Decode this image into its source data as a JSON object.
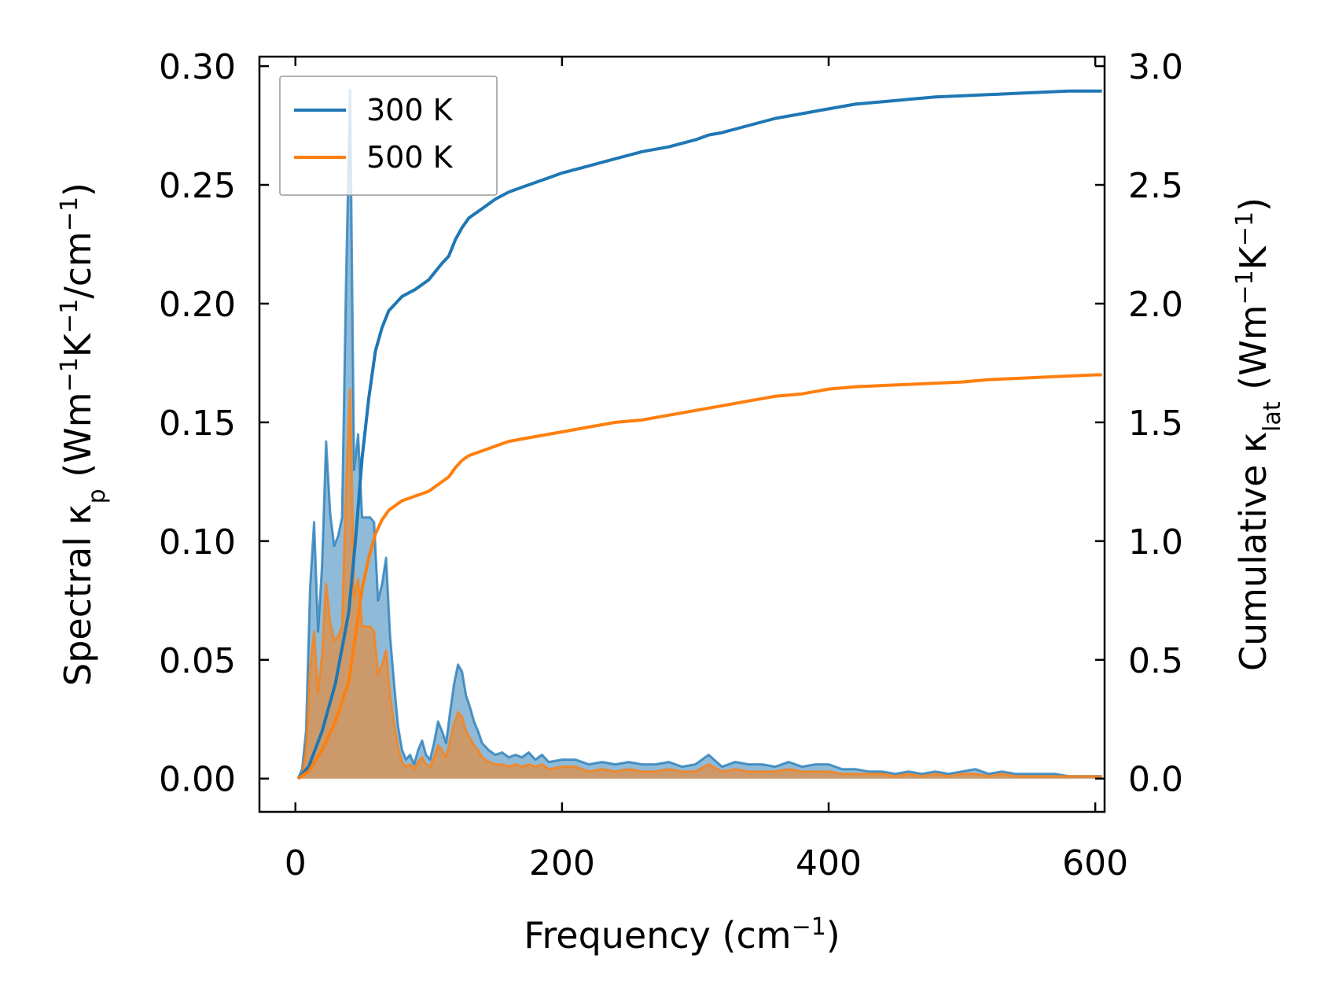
{
  "chart_data": {
    "type": "line",
    "title": "",
    "xlabel": {
      "base": "Frequency (cm",
      "sup": "−1",
      "tail": ")"
    },
    "ylabel_left": {
      "p1": "Spectral κ",
      "sub": "p",
      "p2": " (Wm",
      "sup1": "−1",
      "p3": "K",
      "sup2": "−1",
      "p4": "/cm",
      "sup3": "−1",
      "p5": ")"
    },
    "ylabel_right": {
      "p1": "Cumulative κ",
      "sub": "lat",
      "p2": " (Wm",
      "sup1": "−1",
      "p3": "K",
      "sup2": "−1",
      "p4": ")"
    },
    "xlim": [
      -27,
      607
    ],
    "ylim_left": [
      -0.014,
      0.304
    ],
    "ylim_right": [
      -0.14,
      3.04
    ],
    "xticks": [
      0,
      200,
      400,
      600
    ],
    "xtick_labels": [
      "0",
      "200",
      "400",
      "600"
    ],
    "yticks_left": [
      0.0,
      0.05,
      0.1,
      0.15,
      0.2,
      0.25,
      0.3
    ],
    "ytick_labels_left": [
      "0.00",
      "0.05",
      "0.10",
      "0.15",
      "0.20",
      "0.25",
      "0.30"
    ],
    "yticks_right": [
      0.0,
      0.5,
      1.0,
      1.5,
      2.0,
      2.5,
      3.0
    ],
    "ytick_labels_right": [
      "0.0",
      "0.5",
      "1.0",
      "1.5",
      "2.0",
      "2.5",
      "3.0"
    ],
    "legend": {
      "position": "upper-left",
      "entries": [
        "300 K",
        "500 K"
      ]
    },
    "colors": {
      "300K": "#1f77b4",
      "500K": "#ff7f0e"
    },
    "spectral": [
      {
        "name": "300 K",
        "axis": "left",
        "x": [
          2,
          5,
          8,
          11,
          14,
          17,
          20,
          23,
          26,
          29,
          32,
          35,
          38,
          41,
          44,
          47,
          50,
          53,
          56,
          59,
          62,
          65,
          68,
          71,
          74,
          77,
          80,
          83,
          86,
          89,
          92,
          95,
          98,
          101,
          104,
          107,
          110,
          113,
          116,
          119,
          122,
          125,
          128,
          131,
          134,
          137,
          140,
          145,
          150,
          155,
          160,
          165,
          170,
          175,
          180,
          185,
          190,
          200,
          210,
          220,
          230,
          240,
          250,
          260,
          270,
          280,
          290,
          300,
          310,
          320,
          330,
          340,
          350,
          360,
          370,
          380,
          390,
          400,
          410,
          420,
          430,
          440,
          450,
          460,
          470,
          480,
          490,
          500,
          510,
          520,
          530,
          540,
          550,
          560,
          570,
          580,
          590,
          600,
          605
        ],
        "y": [
          0.0,
          0.004,
          0.02,
          0.08,
          0.108,
          0.062,
          0.09,
          0.142,
          0.112,
          0.098,
          0.102,
          0.11,
          0.21,
          0.29,
          0.13,
          0.145,
          0.11,
          0.11,
          0.11,
          0.108,
          0.075,
          0.082,
          0.093,
          0.06,
          0.04,
          0.022,
          0.012,
          0.008,
          0.01,
          0.006,
          0.012,
          0.016,
          0.01,
          0.008,
          0.015,
          0.024,
          0.02,
          0.015,
          0.028,
          0.04,
          0.048,
          0.045,
          0.035,
          0.03,
          0.024,
          0.02,
          0.015,
          0.012,
          0.01,
          0.011,
          0.009,
          0.01,
          0.009,
          0.011,
          0.008,
          0.01,
          0.007,
          0.008,
          0.008,
          0.006,
          0.007,
          0.006,
          0.007,
          0.006,
          0.006,
          0.007,
          0.005,
          0.006,
          0.01,
          0.005,
          0.007,
          0.006,
          0.006,
          0.005,
          0.007,
          0.005,
          0.006,
          0.006,
          0.004,
          0.004,
          0.003,
          0.003,
          0.002,
          0.003,
          0.002,
          0.003,
          0.002,
          0.003,
          0.004,
          0.002,
          0.003,
          0.002,
          0.002,
          0.002,
          0.002,
          0.001,
          0.001,
          0.001,
          0.001
        ]
      },
      {
        "name": "500 K",
        "axis": "left",
        "x": [
          2,
          5,
          8,
          11,
          14,
          17,
          20,
          23,
          26,
          29,
          32,
          35,
          38,
          41,
          44,
          47,
          50,
          53,
          56,
          59,
          62,
          65,
          68,
          71,
          74,
          77,
          80,
          83,
          86,
          89,
          92,
          95,
          98,
          101,
          104,
          107,
          110,
          113,
          116,
          119,
          122,
          125,
          128,
          131,
          134,
          137,
          140,
          145,
          150,
          155,
          160,
          165,
          170,
          175,
          180,
          185,
          190,
          200,
          210,
          220,
          230,
          240,
          250,
          260,
          270,
          280,
          290,
          300,
          310,
          320,
          330,
          340,
          350,
          360,
          370,
          380,
          390,
          400,
          410,
          420,
          430,
          440,
          450,
          460,
          470,
          480,
          490,
          500,
          510,
          520,
          530,
          540,
          550,
          560,
          570,
          580,
          590,
          600,
          605
        ],
        "y": [
          0.0,
          0.002,
          0.012,
          0.046,
          0.062,
          0.036,
          0.052,
          0.082,
          0.066,
          0.058,
          0.06,
          0.064,
          0.122,
          0.164,
          0.076,
          0.084,
          0.064,
          0.064,
          0.064,
          0.062,
          0.044,
          0.048,
          0.054,
          0.035,
          0.023,
          0.013,
          0.007,
          0.005,
          0.006,
          0.004,
          0.007,
          0.009,
          0.006,
          0.005,
          0.009,
          0.014,
          0.012,
          0.009,
          0.016,
          0.023,
          0.028,
          0.026,
          0.02,
          0.017,
          0.014,
          0.012,
          0.009,
          0.007,
          0.006,
          0.006,
          0.005,
          0.006,
          0.005,
          0.006,
          0.005,
          0.006,
          0.004,
          0.005,
          0.005,
          0.003,
          0.004,
          0.003,
          0.004,
          0.003,
          0.003,
          0.004,
          0.003,
          0.003,
          0.006,
          0.003,
          0.004,
          0.003,
          0.003,
          0.003,
          0.004,
          0.003,
          0.003,
          0.003,
          0.002,
          0.002,
          0.002,
          0.002,
          0.001,
          0.002,
          0.001,
          0.002,
          0.001,
          0.002,
          0.002,
          0.001,
          0.002,
          0.001,
          0.001,
          0.001,
          0.001,
          0.001,
          0.001,
          0.001,
          0.001
        ]
      }
    ],
    "cumulative": [
      {
        "name": "300 K",
        "axis": "right",
        "x": [
          2,
          10,
          20,
          30,
          40,
          45,
          50,
          55,
          60,
          65,
          70,
          80,
          90,
          100,
          110,
          115,
          120,
          125,
          130,
          140,
          150,
          160,
          170,
          180,
          190,
          200,
          220,
          240,
          260,
          280,
          300,
          310,
          320,
          340,
          360,
          380,
          390,
          400,
          420,
          440,
          460,
          480,
          500,
          520,
          540,
          560,
          580,
          600,
          605
        ],
        "y": [
          0.0,
          0.05,
          0.2,
          0.4,
          0.7,
          1.0,
          1.35,
          1.6,
          1.8,
          1.9,
          1.97,
          2.03,
          2.06,
          2.1,
          2.17,
          2.2,
          2.27,
          2.32,
          2.36,
          2.4,
          2.44,
          2.47,
          2.49,
          2.51,
          2.53,
          2.55,
          2.58,
          2.61,
          2.64,
          2.66,
          2.69,
          2.71,
          2.72,
          2.75,
          2.78,
          2.8,
          2.81,
          2.82,
          2.84,
          2.85,
          2.86,
          2.87,
          2.875,
          2.88,
          2.885,
          2.89,
          2.895,
          2.895,
          2.895
        ]
      },
      {
        "name": "500 K",
        "axis": "right",
        "x": [
          2,
          10,
          20,
          30,
          40,
          45,
          50,
          55,
          60,
          65,
          70,
          80,
          90,
          100,
          110,
          115,
          120,
          125,
          130,
          140,
          150,
          160,
          170,
          180,
          190,
          200,
          220,
          240,
          260,
          280,
          300,
          310,
          320,
          340,
          360,
          380,
          390,
          400,
          420,
          440,
          460,
          480,
          500,
          520,
          540,
          560,
          580,
          600,
          605
        ],
        "y": [
          0.0,
          0.03,
          0.12,
          0.24,
          0.41,
          0.6,
          0.8,
          0.93,
          1.03,
          1.09,
          1.13,
          1.17,
          1.19,
          1.21,
          1.25,
          1.27,
          1.31,
          1.34,
          1.36,
          1.38,
          1.4,
          1.42,
          1.43,
          1.44,
          1.45,
          1.46,
          1.48,
          1.5,
          1.51,
          1.53,
          1.55,
          1.56,
          1.57,
          1.59,
          1.61,
          1.62,
          1.63,
          1.64,
          1.65,
          1.655,
          1.66,
          1.665,
          1.67,
          1.68,
          1.685,
          1.69,
          1.695,
          1.7,
          1.7
        ]
      }
    ]
  }
}
